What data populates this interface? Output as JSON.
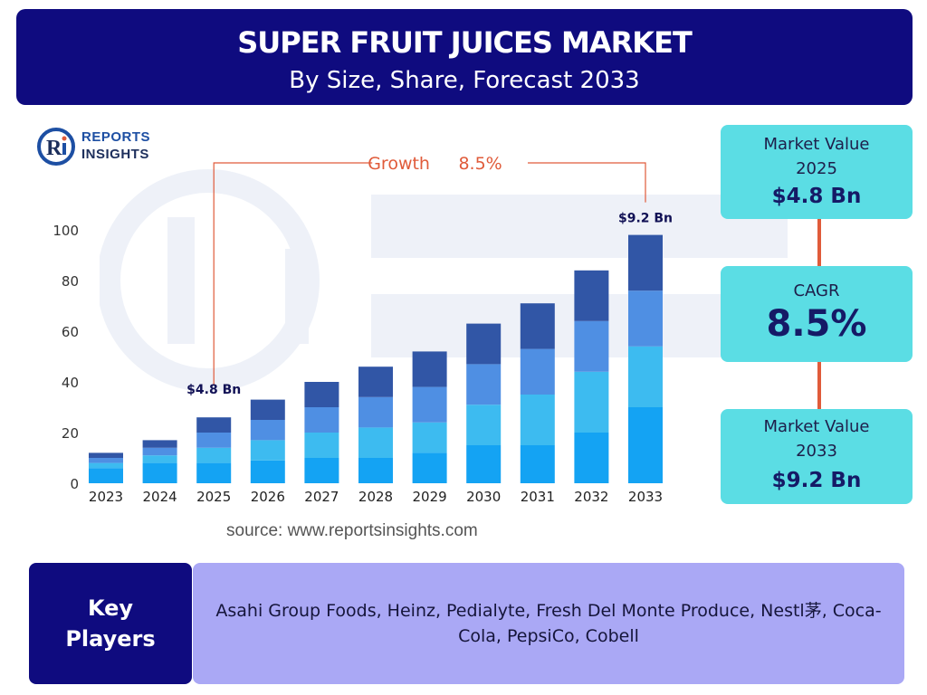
{
  "header": {
    "title": "SUPER FRUIT JUICES MARKET",
    "subtitle": "By Size, Share, Forecast 2033"
  },
  "logo": {
    "line1": "REPORTS",
    "line2": "INSIGHTS"
  },
  "colors": {
    "header_bg": "#0f0b7f",
    "series": [
      "#14a3f3",
      "#3dbbf0",
      "#4f8fe3",
      "#3156a6"
    ],
    "card_bg": "#5bdde4",
    "accent": "#e05b3a",
    "players_bg": "#aaa8f5"
  },
  "chart_data": {
    "type": "bar",
    "stacked": true,
    "categories": [
      "2023",
      "2024",
      "2025",
      "2026",
      "2027",
      "2028",
      "2029",
      "2030",
      "2031",
      "2032",
      "2033"
    ],
    "series": [
      {
        "values": [
          6,
          8,
          8,
          9,
          10,
          10,
          12,
          15,
          15,
          20,
          30
        ]
      },
      {
        "values": [
          2,
          3,
          6,
          8,
          10,
          12,
          12,
          16,
          20,
          24,
          24
        ]
      },
      {
        "values": [
          2,
          3,
          6,
          8,
          10,
          12,
          14,
          16,
          18,
          20,
          22
        ]
      },
      {
        "values": [
          2,
          3,
          6,
          8,
          10,
          12,
          14,
          16,
          18,
          20,
          22
        ]
      }
    ],
    "ylim": [
      0,
      100
    ],
    "yticks": [
      0,
      20,
      40,
      60,
      80,
      100
    ],
    "xlabel": "",
    "ylabel": "",
    "grid": false,
    "annotations": {
      "growth_label": "Growth",
      "growth_value": "8.5%",
      "start_label": "$4.8 Bn",
      "start_category": "2025",
      "end_label": "$9.2 Bn",
      "end_category": "2033"
    }
  },
  "source_text": "source: www.reportsinsights.com",
  "cards": {
    "value_2025": {
      "label_line1": "Market Value",
      "label_line2": "2025",
      "value": "$4.8 Bn"
    },
    "cagr": {
      "label": "CAGR",
      "value": "8.5%"
    },
    "value_2033": {
      "label_line1": "Market Value",
      "label_line2": "2033",
      "value": "$9.2 Bn"
    }
  },
  "key_players": {
    "label_line1": "Key",
    "label_line2": "Players",
    "list": "Asahi Group Foods, Heinz, Pedialyte, Fresh Del Monte Produce, Nestl茅, Coca-Cola, PepsiCo, Cobell"
  }
}
